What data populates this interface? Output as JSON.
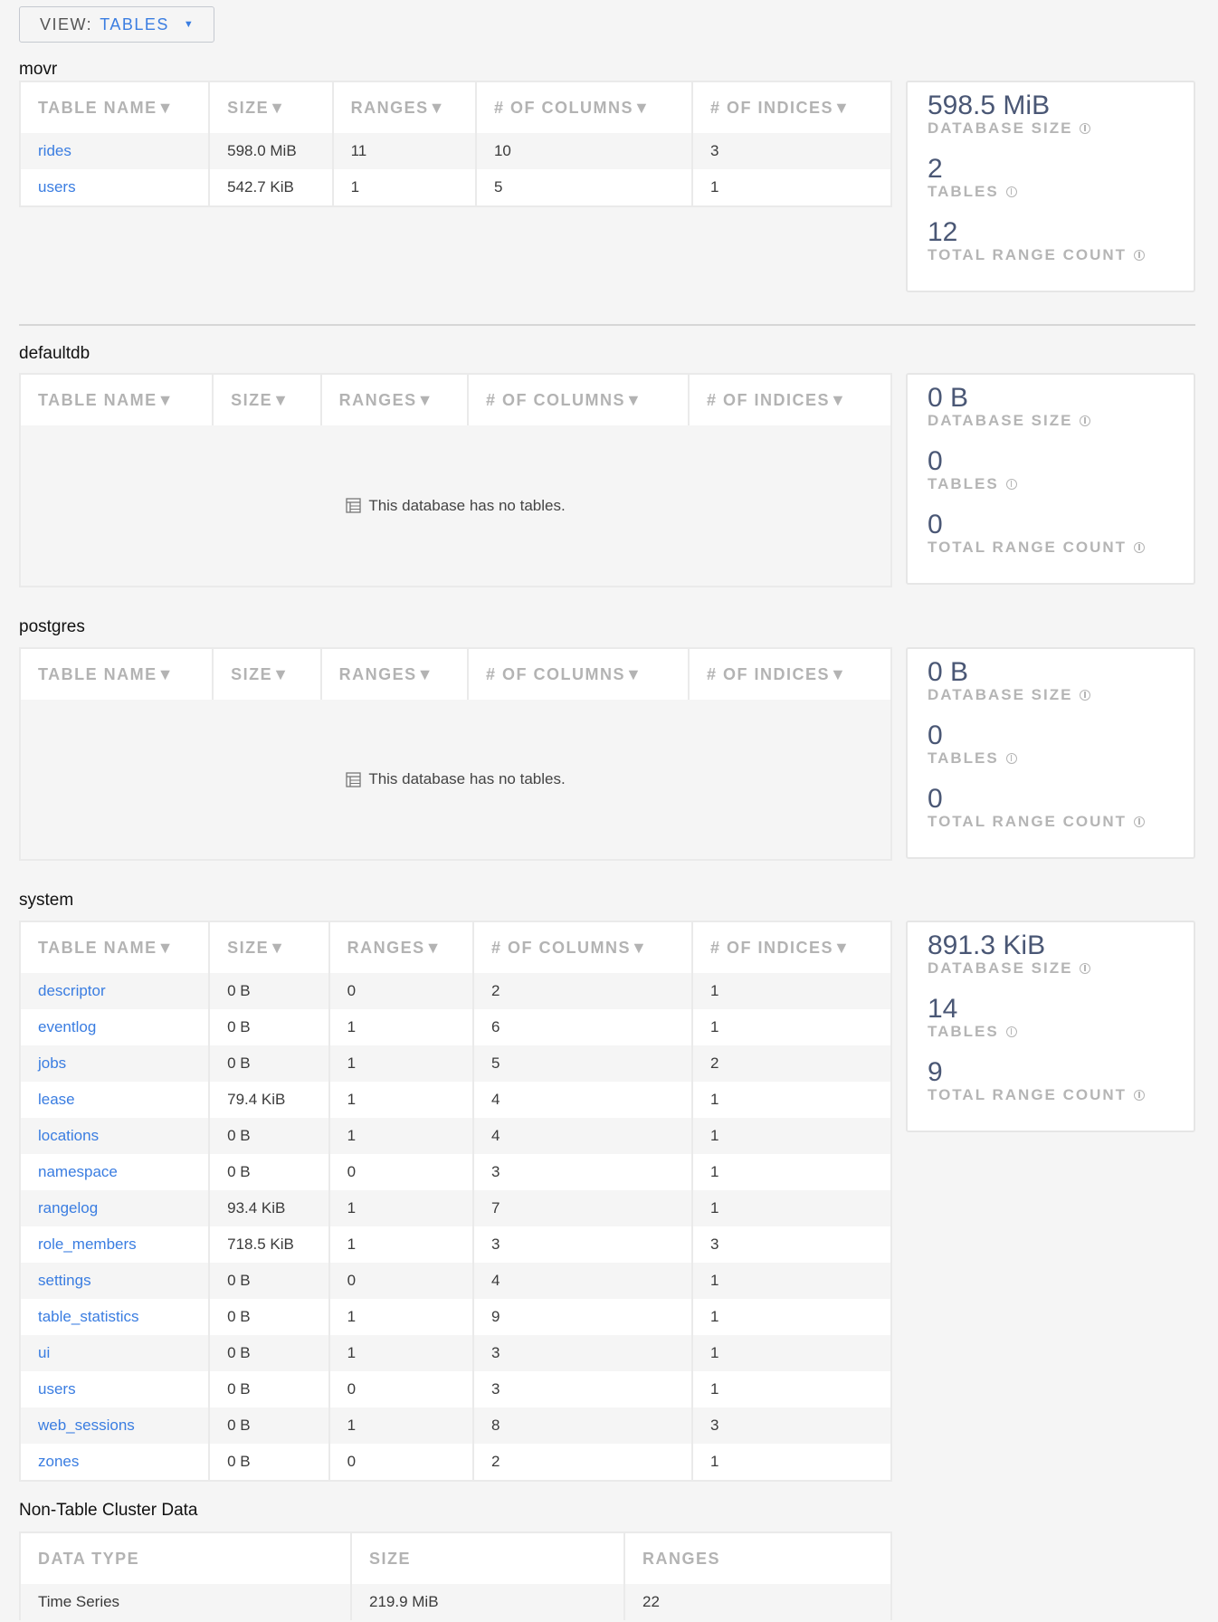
{
  "view_selector": {
    "label": "VIEW:",
    "value": "TABLES"
  },
  "empty_message": "This database has no tables.",
  "stat_labels": {
    "size": "DATABASE SIZE",
    "tables": "TABLES",
    "ranges": "TOTAL RANGE COUNT"
  },
  "columns": [
    "TABLE NAME▼",
    "SIZE▼",
    "RANGES▼",
    "# OF COLUMNS▼",
    "# OF INDICES▼"
  ],
  "databases": [
    {
      "name": "movr",
      "stats": {
        "size": "598.5 MiB",
        "tables": "2",
        "ranges": "12"
      },
      "rows": [
        [
          "rides",
          "598.0 MiB",
          "11",
          "10",
          "3"
        ],
        [
          "users",
          "542.7 KiB",
          "1",
          "5",
          "1"
        ]
      ]
    },
    {
      "name": "defaultdb",
      "stats": {
        "size": "0 B",
        "tables": "0",
        "ranges": "0"
      },
      "rows": []
    },
    {
      "name": "postgres",
      "stats": {
        "size": "0 B",
        "tables": "0",
        "ranges": "0"
      },
      "rows": []
    },
    {
      "name": "system",
      "stats": {
        "size": "891.3 KiB",
        "tables": "14",
        "ranges": "9"
      },
      "rows": [
        [
          "descriptor",
          "0 B",
          "0",
          "2",
          "1"
        ],
        [
          "eventlog",
          "0 B",
          "1",
          "6",
          "1"
        ],
        [
          "jobs",
          "0 B",
          "1",
          "5",
          "2"
        ],
        [
          "lease",
          "79.4 KiB",
          "1",
          "4",
          "1"
        ],
        [
          "locations",
          "0 B",
          "1",
          "4",
          "1"
        ],
        [
          "namespace",
          "0 B",
          "0",
          "3",
          "1"
        ],
        [
          "rangelog",
          "93.4 KiB",
          "1",
          "7",
          "1"
        ],
        [
          "role_members",
          "718.5 KiB",
          "1",
          "3",
          "3"
        ],
        [
          "settings",
          "0 B",
          "0",
          "4",
          "1"
        ],
        [
          "table_statistics",
          "0 B",
          "1",
          "9",
          "1"
        ],
        [
          "ui",
          "0 B",
          "1",
          "3",
          "1"
        ],
        [
          "users",
          "0 B",
          "0",
          "3",
          "1"
        ],
        [
          "web_sessions",
          "0 B",
          "1",
          "8",
          "3"
        ],
        [
          "zones",
          "0 B",
          "0",
          "2",
          "1"
        ]
      ]
    }
  ],
  "non_table": {
    "title": "Non-Table Cluster Data",
    "columns": [
      "DATA TYPE",
      "SIZE",
      "RANGES"
    ],
    "rows": [
      [
        "Time Series",
        "219.9 MiB",
        "22"
      ]
    ]
  }
}
